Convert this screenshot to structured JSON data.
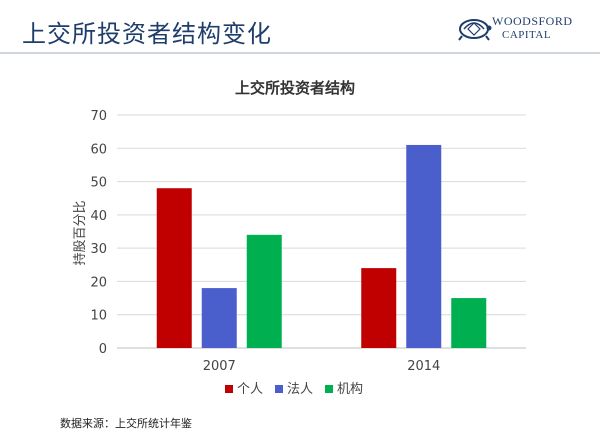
{
  "slide": {
    "title": "上交所投资者结构变化",
    "source": "数据来源：上交所统计年鉴"
  },
  "logo": {
    "line1": "WOODSFORD",
    "line2": "CAPITAL",
    "icon": "turtle-icon"
  },
  "colors": {
    "title": "#1f3d6b",
    "grid": "#d9d9d9",
    "series": [
      "#c00000",
      "#4a5fcb",
      "#00b050"
    ]
  },
  "chart_data": {
    "type": "bar",
    "title": "上交所投资者结构",
    "ylabel": "持股百分比",
    "xlabel": "",
    "categories": [
      "2007",
      "2014"
    ],
    "series": [
      {
        "name": "个人",
        "values": [
          48,
          24
        ]
      },
      {
        "name": "法人",
        "values": [
          18,
          61
        ]
      },
      {
        "name": "机构",
        "values": [
          34,
          15
        ]
      }
    ],
    "ylim": [
      0,
      70
    ],
    "yticks": [
      "0",
      "10",
      "20",
      "30",
      "40",
      "50",
      "60",
      "70"
    ],
    "grid": true,
    "legend": "bottom"
  }
}
